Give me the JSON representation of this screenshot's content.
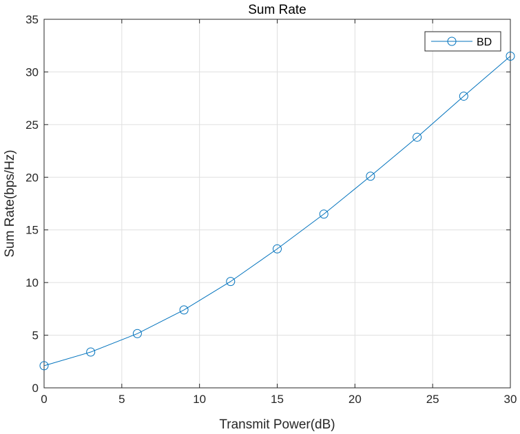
{
  "chart_data": {
    "type": "line",
    "title": "Sum Rate",
    "xlabel": "Transmit Power(dB)",
    "ylabel": "Sum Rate(bps/Hz)",
    "xlim": [
      0,
      30
    ],
    "ylim": [
      0,
      35
    ],
    "xticks": [
      0,
      5,
      10,
      15,
      20,
      25,
      30
    ],
    "yticks": [
      0,
      5,
      10,
      15,
      20,
      25,
      30,
      35
    ],
    "grid": true,
    "legend_position": "top-right",
    "series": [
      {
        "name": "BD",
        "color": "#0072BD",
        "marker": "circle",
        "x": [
          0,
          3,
          6,
          9,
          12,
          15,
          18,
          21,
          24,
          27,
          30
        ],
        "y": [
          2.1,
          3.4,
          5.15,
          7.4,
          10.1,
          13.2,
          16.5,
          20.1,
          23.8,
          27.7,
          31.5
        ]
      }
    ]
  }
}
